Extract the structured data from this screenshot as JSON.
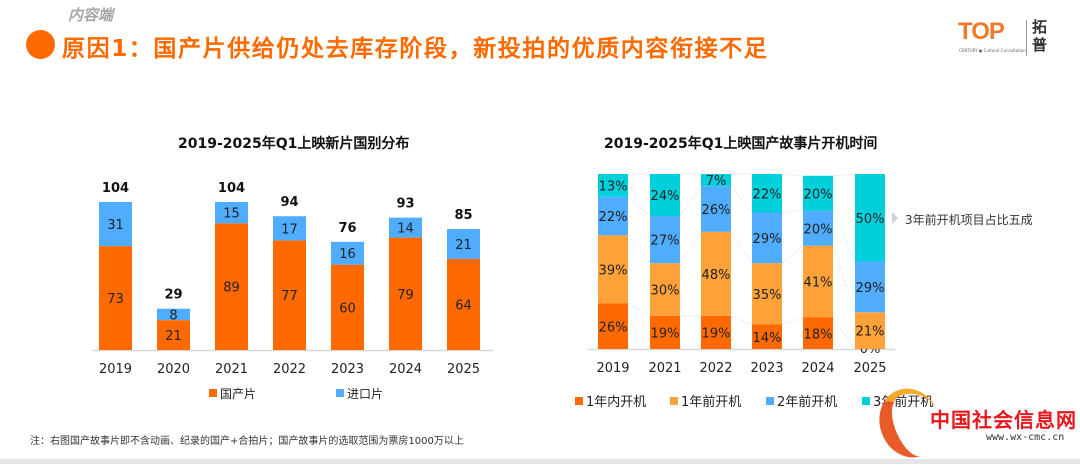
{
  "header": {
    "section_tag": "内容端",
    "title": "原因1：国产片供给仍处去库存阶段，新投拍的优质内容衔接不足",
    "logo_text": "TOP",
    "logo_subtext": "CENTURY ● Cultural Consultation",
    "logo_cn": "拓普"
  },
  "colors": {
    "accent": "#ff6a00",
    "domestic": "#ff6a00",
    "imported": "#4facff",
    "within_1y": "#ff6a00",
    "over_1y": "#ffa23a",
    "over_2y": "#4facff",
    "over_3y": "#00cfdc"
  },
  "annotation": "3年前开机项目占比五成",
  "note": "注：右图国产故事片即不含动画、纪录的国产+合拍片；国产故事片的选取范围为票房1000万以上",
  "watermark": {
    "name": "中国社会信息网",
    "url": "www.wx-cmc.cn"
  },
  "chart_data": [
    {
      "type": "bar",
      "stacked": true,
      "title": "2019-2025年Q1上映新片国别分布",
      "categories": [
        "2019",
        "2020",
        "2021",
        "2022",
        "2023",
        "2024",
        "2025"
      ],
      "series": [
        {
          "name": "国产片",
          "color": "#ff6a00",
          "values": [
            73,
            21,
            89,
            77,
            60,
            79,
            64
          ]
        },
        {
          "name": "进口片",
          "color": "#4facff",
          "values": [
            31,
            8,
            15,
            17,
            16,
            14,
            21
          ]
        }
      ],
      "totals": [
        104,
        29,
        104,
        94,
        76,
        93,
        85
      ],
      "xlabel": "",
      "ylabel": "",
      "ylim": [
        0,
        104
      ],
      "grid": false,
      "legend": "bottom"
    },
    {
      "type": "bar",
      "stacked": true,
      "percent": true,
      "title": "2019-2025年Q1上映国产故事片开机时间",
      "categories": [
        "2019",
        "2021",
        "2022",
        "2023",
        "2024",
        "2025"
      ],
      "series": [
        {
          "name": "1年内开机",
          "color": "#ff6a00",
          "values": [
            26,
            19,
            19,
            14,
            18,
            0
          ]
        },
        {
          "name": "1年前开机",
          "color": "#ffa23a",
          "values": [
            39,
            30,
            48,
            35,
            41,
            21
          ]
        },
        {
          "name": "2年前开机",
          "color": "#4facff",
          "values": [
            22,
            27,
            26,
            29,
            20,
            29
          ]
        },
        {
          "name": "3年前开机",
          "color": "#00cfdc",
          "values": [
            13,
            24,
            7,
            22,
            20,
            50
          ]
        }
      ],
      "xlabel": "",
      "ylabel": "",
      "ylim": [
        0,
        100
      ],
      "grid": false,
      "legend": "bottom"
    }
  ]
}
